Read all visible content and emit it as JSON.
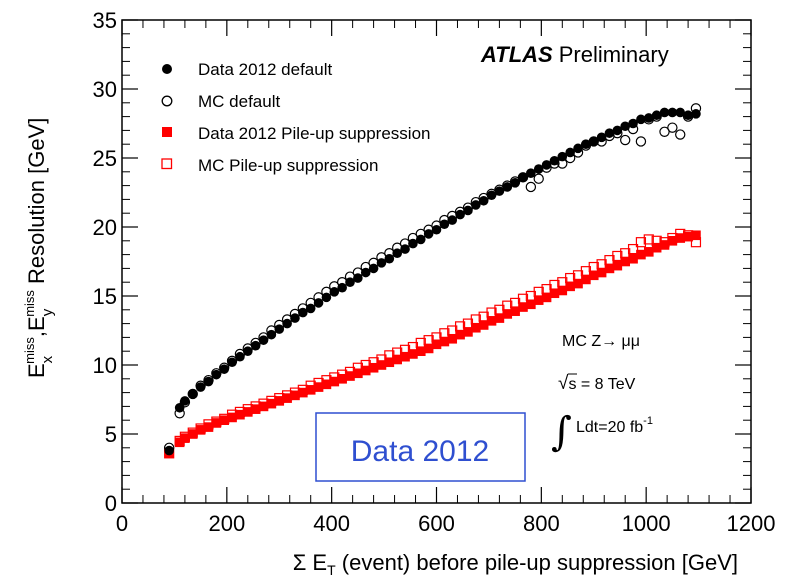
{
  "chart_data": {
    "type": "scatter",
    "xlabel_prefix": "Σ E",
    "xlabel_sub": "T",
    "xlabel_rest": " (event) before pile-up suppression [GeV]",
    "ylabel_e": "E",
    "ylabel_x_sub": "x",
    "ylabel_miss": "miss",
    "ylabel_sep": ",E",
    "ylabel_y_sub": "y",
    "ylabel_rest": " Resolution [GeV]",
    "xlim": [
      0,
      1200
    ],
    "ylim": [
      0,
      35
    ],
    "x_ticks": [
      0,
      200,
      400,
      600,
      800,
      1000,
      1200
    ],
    "y_ticks": [
      0,
      5,
      10,
      15,
      20,
      25,
      30,
      35
    ],
    "x_tick_labels": [
      "0",
      "200",
      "400",
      "600",
      "800",
      "1000",
      "1200"
    ],
    "y_tick_labels": [
      "0",
      "5",
      "10",
      "15",
      "20",
      "25",
      "30",
      "35"
    ],
    "legend_position": "top-left",
    "atlas_label": "ATLAS",
    "preliminary_label": "Preliminary",
    "annotations": {
      "process_prefix": "MC Z",
      "process_arrow": "→",
      "process_suffix": " μμ",
      "sqrt_s_root": "√",
      "sqrt_s_var": "s",
      "sqrt_s_rest": " = 8 TeV",
      "lumi_integral": "∫",
      "lumi_text": "Ldt=20 fb",
      "lumi_exp": "-1"
    },
    "stamp_label": "Data 2012",
    "series": [
      {
        "name": "Data 2012 default",
        "marker": "filled-circle",
        "color": "#000000",
        "x": [
          90,
          110,
          120,
          135,
          150,
          165,
          180,
          195,
          210,
          225,
          240,
          255,
          270,
          285,
          300,
          315,
          330,
          345,
          360,
          375,
          390,
          405,
          420,
          435,
          450,
          465,
          480,
          495,
          510,
          525,
          540,
          555,
          570,
          585,
          600,
          615,
          630,
          645,
          660,
          675,
          690,
          705,
          720,
          735,
          750,
          765,
          780,
          795,
          810,
          825,
          840,
          855,
          870,
          885,
          900,
          915,
          930,
          945,
          960,
          975,
          990,
          1005,
          1020,
          1035,
          1050,
          1065,
          1080,
          1095
        ],
        "y": [
          3.8,
          6.9,
          7.4,
          7.9,
          8.4,
          8.8,
          9.3,
          9.7,
          10.2,
          10.6,
          11.0,
          11.4,
          11.8,
          12.2,
          12.6,
          13.0,
          13.4,
          13.8,
          14.1,
          14.5,
          14.9,
          15.3,
          15.6,
          16.0,
          16.3,
          16.7,
          17.0,
          17.4,
          17.7,
          18.1,
          18.4,
          18.8,
          19.1,
          19.5,
          19.8,
          20.2,
          20.5,
          20.9,
          21.2,
          21.6,
          21.9,
          22.3,
          22.6,
          22.9,
          23.2,
          23.6,
          23.9,
          24.2,
          24.5,
          24.8,
          25.1,
          25.4,
          25.7,
          26.0,
          26.2,
          26.5,
          26.8,
          27.0,
          27.3,
          27.5,
          27.8,
          27.9,
          28.1,
          28.3,
          28.3,
          28.3,
          28.1,
          28.2
        ]
      },
      {
        "name": "MC default",
        "marker": "open-circle",
        "color": "#000000",
        "x": [
          90,
          110,
          120,
          135,
          150,
          165,
          180,
          195,
          210,
          225,
          240,
          255,
          270,
          285,
          300,
          315,
          330,
          345,
          360,
          375,
          390,
          405,
          420,
          435,
          450,
          465,
          480,
          495,
          510,
          525,
          540,
          555,
          570,
          585,
          600,
          615,
          630,
          645,
          660,
          675,
          690,
          705,
          720,
          735,
          750,
          765,
          780,
          795,
          810,
          825,
          840,
          855,
          870,
          885,
          900,
          915,
          930,
          945,
          960,
          975,
          990,
          1005,
          1020,
          1035,
          1050,
          1065,
          1080,
          1095
        ],
        "y": [
          4.0,
          6.5,
          7.3,
          7.9,
          8.5,
          8.9,
          9.4,
          9.8,
          10.3,
          10.8,
          11.2,
          11.6,
          12.0,
          12.5,
          12.9,
          13.3,
          13.7,
          14.1,
          14.5,
          14.9,
          15.3,
          15.7,
          16.0,
          16.4,
          16.7,
          17.1,
          17.4,
          17.8,
          18.1,
          18.5,
          18.8,
          19.2,
          19.5,
          19.8,
          20.1,
          20.5,
          20.8,
          21.1,
          21.4,
          21.8,
          22.1,
          22.4,
          22.7,
          23.0,
          23.3,
          23.6,
          22.9,
          23.5,
          24.3,
          24.6,
          24.6,
          25.0,
          25.4,
          25.9,
          26.2,
          26.2,
          26.6,
          26.8,
          26.3,
          27.1,
          26.2,
          27.8,
          28.0,
          26.9,
          27.2,
          26.7,
          28.0,
          28.6
        ]
      },
      {
        "name": "Data 2012 Pile-up suppression",
        "marker": "filled-square",
        "color": "#ff0000",
        "x": [
          90,
          110,
          120,
          135,
          150,
          165,
          180,
          195,
          210,
          225,
          240,
          255,
          270,
          285,
          300,
          315,
          330,
          345,
          360,
          375,
          390,
          405,
          420,
          435,
          450,
          465,
          480,
          495,
          510,
          525,
          540,
          555,
          570,
          585,
          600,
          615,
          630,
          645,
          660,
          675,
          690,
          705,
          720,
          735,
          750,
          765,
          780,
          795,
          810,
          825,
          840,
          855,
          870,
          885,
          900,
          915,
          930,
          945,
          960,
          975,
          990,
          1005,
          1020,
          1035,
          1050,
          1065,
          1080,
          1095
        ],
        "y": [
          3.6,
          4.4,
          4.7,
          5.0,
          5.3,
          5.5,
          5.8,
          6.0,
          6.2,
          6.4,
          6.6,
          6.8,
          7.0,
          7.2,
          7.4,
          7.6,
          7.8,
          8.0,
          8.2,
          8.4,
          8.6,
          8.8,
          9.0,
          9.2,
          9.4,
          9.6,
          9.8,
          10.0,
          10.2,
          10.4,
          10.6,
          10.8,
          11.0,
          11.2,
          11.5,
          11.7,
          11.9,
          12.2,
          12.4,
          12.7,
          12.9,
          13.2,
          13.4,
          13.7,
          13.9,
          14.2,
          14.4,
          14.7,
          14.9,
          15.2,
          15.4,
          15.7,
          15.9,
          16.2,
          16.5,
          16.7,
          17.0,
          17.2,
          17.5,
          17.7,
          18.0,
          18.2,
          18.5,
          18.7,
          19.0,
          19.2,
          19.3,
          19.4
        ]
      },
      {
        "name": "MC Pile-up suppression",
        "marker": "open-square",
        "color": "#ff0000",
        "x": [
          90,
          110,
          120,
          135,
          150,
          165,
          180,
          195,
          210,
          225,
          240,
          255,
          270,
          285,
          300,
          315,
          330,
          345,
          360,
          375,
          390,
          405,
          420,
          435,
          450,
          465,
          480,
          495,
          510,
          525,
          540,
          555,
          570,
          585,
          600,
          615,
          630,
          645,
          660,
          675,
          690,
          705,
          720,
          735,
          750,
          765,
          780,
          795,
          810,
          825,
          840,
          855,
          870,
          885,
          900,
          915,
          930,
          945,
          960,
          975,
          990,
          1005,
          1020,
          1035,
          1050,
          1065,
          1080,
          1095
        ],
        "y": [
          3.6,
          4.5,
          4.8,
          5.1,
          5.4,
          5.7,
          5.9,
          6.1,
          6.4,
          6.6,
          6.8,
          7.0,
          7.2,
          7.4,
          7.6,
          7.8,
          8.0,
          8.2,
          8.5,
          8.7,
          8.9,
          9.1,
          9.3,
          9.5,
          9.8,
          10.0,
          10.2,
          10.4,
          10.7,
          10.9,
          11.1,
          11.3,
          11.6,
          11.8,
          12.0,
          12.3,
          12.5,
          12.8,
          13.0,
          13.3,
          13.5,
          13.8,
          14.0,
          14.3,
          14.5,
          14.8,
          15.0,
          15.3,
          15.5,
          15.8,
          16.0,
          16.3,
          16.5,
          16.8,
          17.1,
          17.3,
          17.6,
          17.9,
          18.1,
          18.4,
          18.9,
          19.1,
          19.0,
          18.9,
          19.2,
          19.5,
          19.4,
          18.9
        ]
      }
    ]
  }
}
